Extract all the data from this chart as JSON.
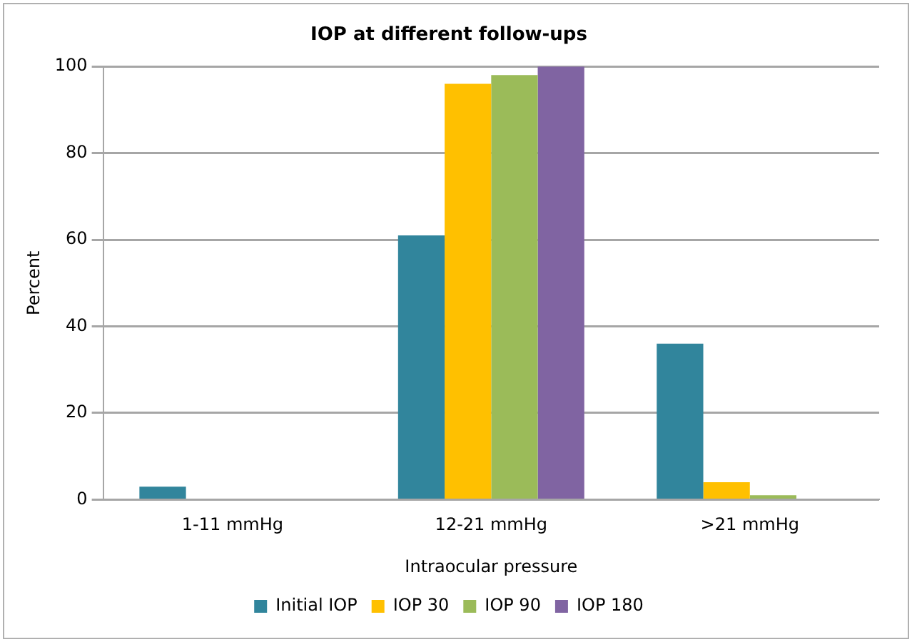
{
  "chart_data": {
    "type": "bar",
    "title": "IOP at different follow-ups",
    "xlabel": "Intraocular pressure",
    "ylabel": "Percent",
    "categories": [
      "1-11 mmHg",
      "12-21 mmHg",
      ">21 mmHg"
    ],
    "series": [
      {
        "name": "Initial IOP",
        "color": "#31859c",
        "values": [
          3,
          61,
          36
        ]
      },
      {
        "name": "IOP 30",
        "color": "#ffc000",
        "values": [
          0,
          96,
          4
        ]
      },
      {
        "name": "IOP 90",
        "color": "#9bbb59",
        "values": [
          0,
          98,
          1
        ]
      },
      {
        "name": "IOP 180",
        "color": "#8064a2",
        "values": [
          0,
          100,
          0
        ]
      }
    ],
    "ylim": [
      0,
      100
    ],
    "yticks": [
      0,
      20,
      40,
      60,
      80,
      100
    ],
    "grid": "y",
    "legend": "bottom"
  }
}
